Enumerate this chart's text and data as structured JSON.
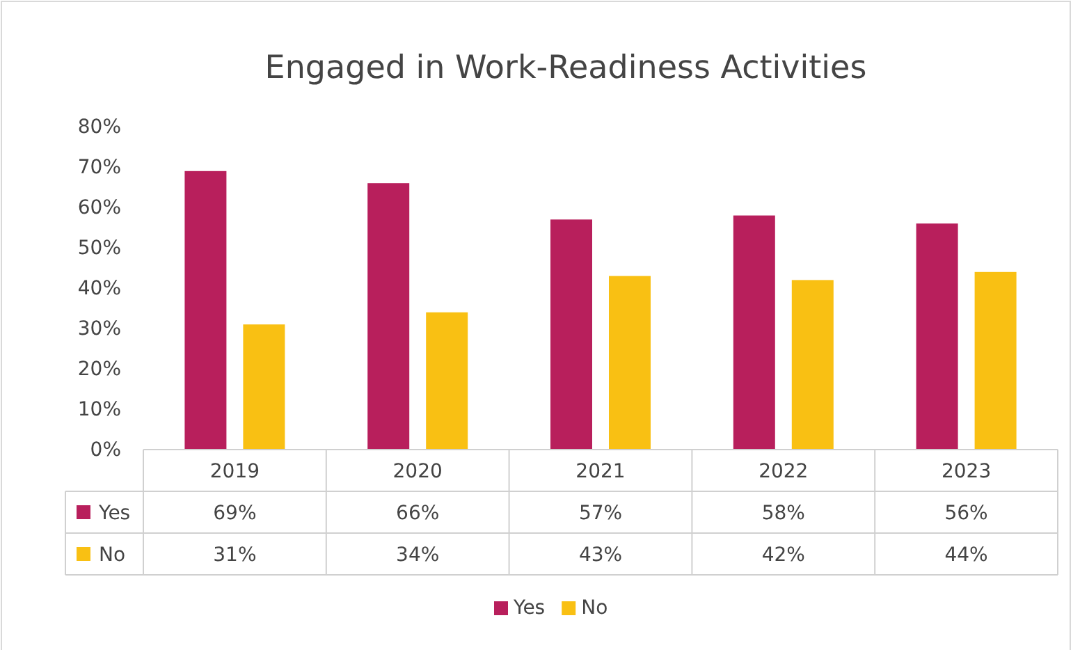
{
  "chart_data": {
    "type": "bar",
    "title": "Engaged in Work-Readiness Activities",
    "categories": [
      "2019",
      "2020",
      "2021",
      "2022",
      "2023"
    ],
    "series": [
      {
        "name": "Yes",
        "color": "#b81f5c",
        "values": [
          69,
          66,
          57,
          58,
          56
        ],
        "value_labels": [
          "69%",
          "66%",
          "57%",
          "58%",
          "56%"
        ]
      },
      {
        "name": "No",
        "color": "#f9c013",
        "values": [
          31,
          34,
          43,
          42,
          44
        ],
        "value_labels": [
          "31%",
          "34%",
          "43%",
          "42%",
          "44%"
        ]
      }
    ],
    "ylim": [
      0,
      80
    ],
    "yticks": [
      {
        "value": 0,
        "label": "0%"
      },
      {
        "value": 10,
        "label": "10%"
      },
      {
        "value": 20,
        "label": "20%"
      },
      {
        "value": 30,
        "label": "30%"
      },
      {
        "value": 40,
        "label": "40%"
      },
      {
        "value": 50,
        "label": "50%"
      },
      {
        "value": 60,
        "label": "60%"
      },
      {
        "value": 70,
        "label": "70%"
      },
      {
        "value": 80,
        "label": "80%"
      }
    ],
    "legend": "bottom"
  }
}
